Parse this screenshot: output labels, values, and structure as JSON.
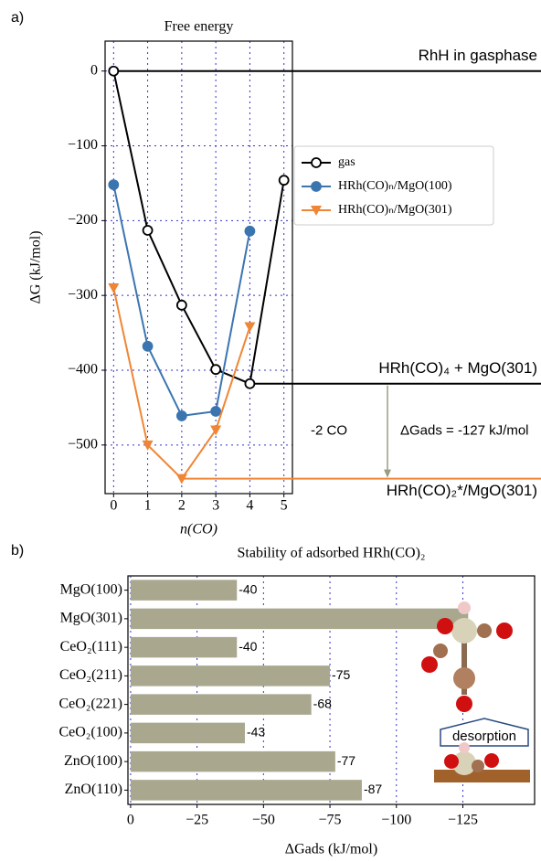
{
  "chart_data": [
    {
      "type": "line",
      "panel_label": "a)",
      "title": "Free energy",
      "xlabel": "n(CO)",
      "ylabel": "ΔG (kJ/mol)",
      "x": [
        0,
        1,
        2,
        3,
        4,
        5
      ],
      "xlim": [
        -0.25,
        5.25
      ],
      "xticks": [
        0,
        1,
        2,
        3,
        4,
        5
      ],
      "ylim": [
        -565,
        40
      ],
      "yticks": [
        0,
        {
          "value": -100,
          "label": "−100"
        },
        {
          "value": -200,
          "label": "−200"
        },
        {
          "value": -300,
          "label": "−300"
        },
        {
          "value": -400,
          "label": "−400"
        },
        {
          "value": -500,
          "label": "−500"
        }
      ],
      "grid": true,
      "legend": "upper right",
      "series": [
        {
          "name": "gas",
          "color": "#000000",
          "marker": "circle",
          "filled": false,
          "values": [
            0,
            -213,
            -313,
            -399,
            -418,
            -146
          ]
        },
        {
          "name": "HRh(CO)ₙ/MgO(100)",
          "color": "#3b75af",
          "marker": "circle",
          "filled": true,
          "values": [
            -152,
            -368,
            -461,
            -455,
            -214,
            null
          ]
        },
        {
          "name": "HRh(CO)ₙ/MgO(301)",
          "color": "#ef8636",
          "marker": "triangle-down",
          "filled": true,
          "values": [
            -290,
            -500,
            -545,
            -480,
            -342,
            null
          ]
        }
      ],
      "hlines": [
        {
          "value": 0,
          "from_x": 0,
          "color": "#000000",
          "label": "RhH in gasphase"
        },
        {
          "value": -418,
          "from_x": 4,
          "color": "#000000",
          "label": "HRh(CO)₄ + MgO(301)"
        },
        {
          "value": -545,
          "from_x": 2,
          "color": "#ef8636",
          "label": "HRh(CO)₂*/MgO(301)"
        }
      ],
      "annotations": [
        "-2 CO",
        "ΔGads = -127 kJ/mol"
      ]
    },
    {
      "type": "barh",
      "panel_label": "b)",
      "title": "Stability of adsorbed HRh(CO)₂",
      "xlabel": "ΔGads (kJ/mol)",
      "categories": [
        "MgO(100)",
        "MgO(301)",
        "CeO₂(111)",
        "CeO₂(211)",
        "CeO₂(221)",
        "CeO₂(100)",
        "ZnO(100)",
        "ZnO(110)"
      ],
      "values": [
        -40,
        -127,
        -40,
        -75,
        -68,
        -43,
        -77,
        -87
      ],
      "value_labels": [
        "-40",
        null,
        "-40",
        "-75",
        "-68",
        "-43",
        "-77",
        "-87"
      ],
      "color": "#a9a88f",
      "xlim": [
        1,
        -152
      ],
      "xticks": [
        0,
        {
          "value": -25,
          "label": "−25"
        },
        {
          "value": -50,
          "label": "−50"
        },
        {
          "value": -75,
          "label": "−75"
        },
        {
          "value": -100,
          "label": "−100"
        },
        {
          "value": -125,
          "label": "−125"
        }
      ],
      "grid": true,
      "inset_label": "desorption"
    }
  ]
}
